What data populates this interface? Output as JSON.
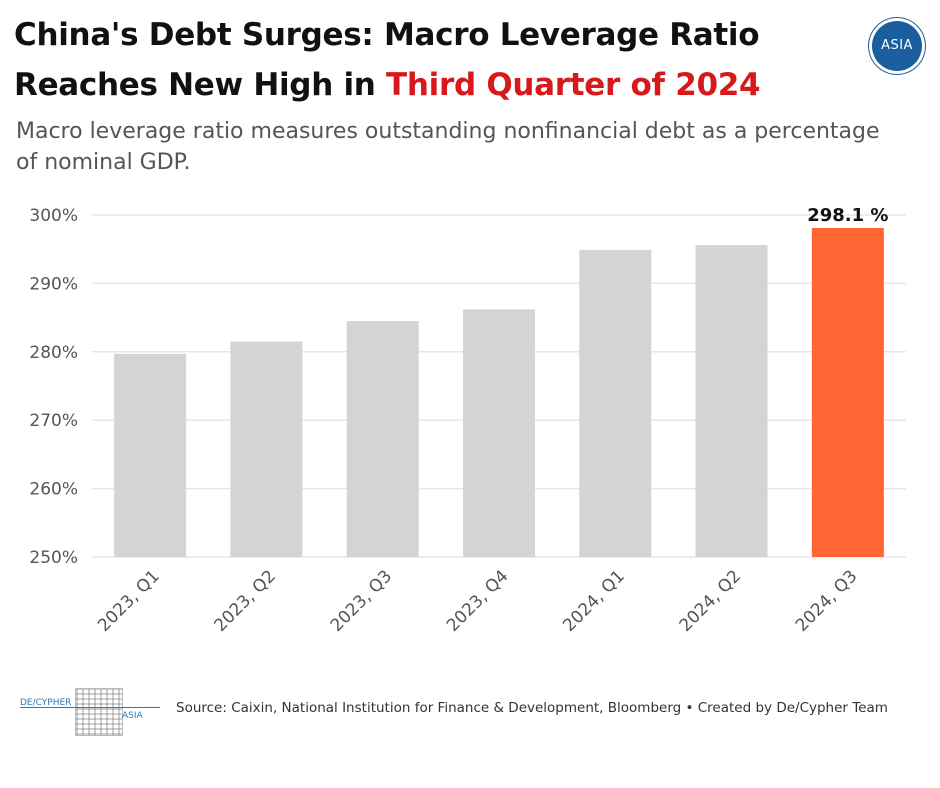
{
  "header": {
    "title_part1": "China's Debt Surges: Macro Leverage Ratio Reaches New High in ",
    "title_highlight": "Third Quarter of 2024",
    "subtitle": "Macro leverage ratio measures outstanding nonfinancial debt as a percentage of nominal GDP.",
    "badge_text": "ASIA"
  },
  "footer": {
    "logo_text_1": "DE/CYPHER",
    "logo_text_2": "ASIA",
    "source": "Source: Caixin, National Institution for Finance & Development, Bloomberg • Created by De/Cypher Team"
  },
  "colors": {
    "bar_default": "#d4d4d4",
    "bar_highlight": "#ff6633",
    "title_highlight": "#d7191c",
    "grid": "#e6e6e6"
  },
  "chart_data": {
    "type": "bar",
    "categories": [
      "2023, Q1",
      "2023, Q2",
      "2023, Q3",
      "2023, Q4",
      "2024, Q1",
      "2024, Q2",
      "2024, Q3"
    ],
    "values": [
      279.7,
      281.5,
      284.5,
      286.2,
      294.9,
      295.6,
      298.1
    ],
    "highlight_index": 6,
    "data_labels": [
      {
        "index": 6,
        "text": "298.1 %"
      }
    ],
    "ylim": [
      250,
      300
    ],
    "yticks": [
      250,
      260,
      270,
      280,
      290,
      300
    ],
    "ytick_labels": [
      "250%",
      "260%",
      "270%",
      "280%",
      "290%",
      "300%"
    ],
    "title": "China's Debt Surges: Macro Leverage Ratio Reaches New High in Third Quarter of 2024",
    "xlabel": "",
    "ylabel": "",
    "grid": true
  }
}
